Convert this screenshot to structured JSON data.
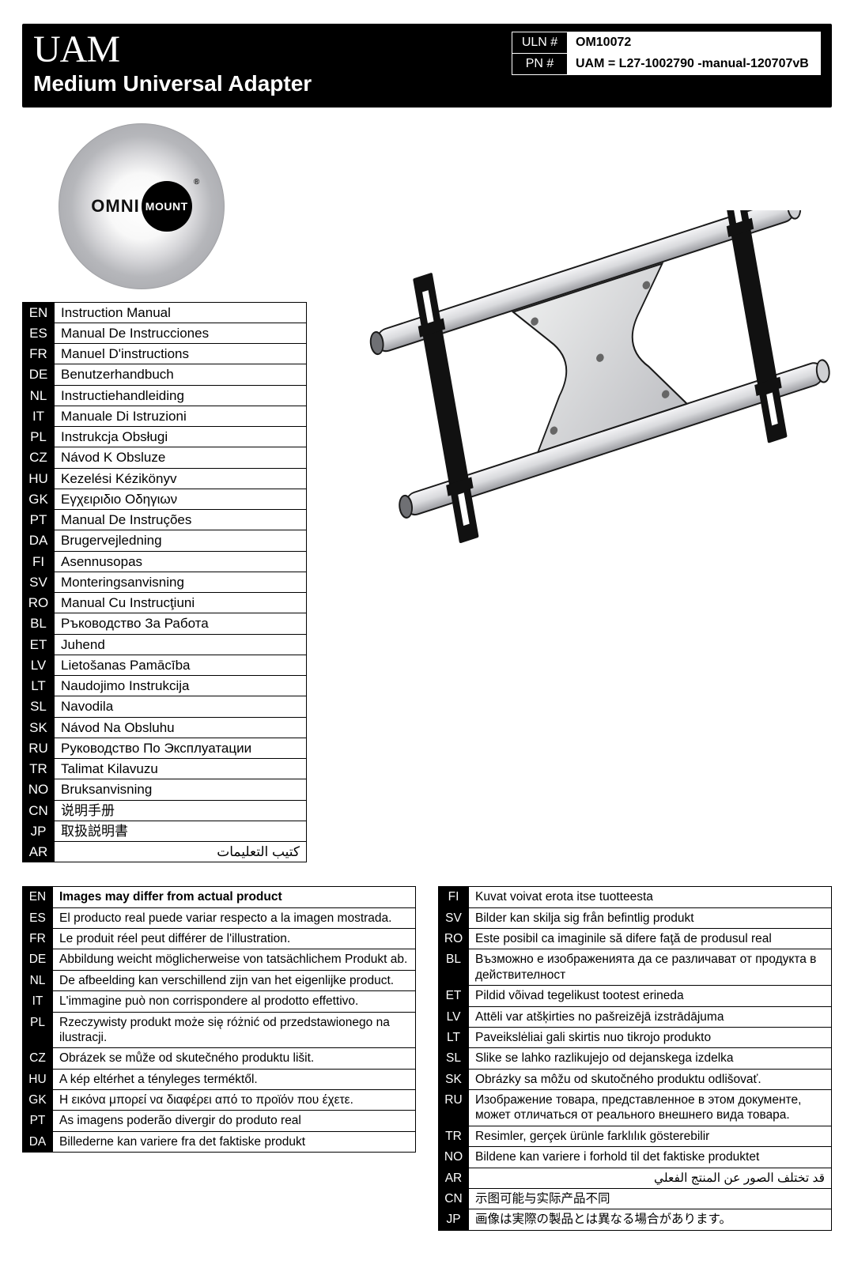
{
  "header": {
    "brand": "UAM",
    "subtitle": "Medium Universal Adapter",
    "uln_label": "ULN #",
    "uln_value": "OM10072",
    "pn_label": "PN #",
    "pn_value": "UAM = L27-1002790 -manual-120707vB"
  },
  "logo": {
    "omni": "OMNI",
    "mount": "MOUNT",
    "reg": "®"
  },
  "languages": [
    {
      "code": "EN",
      "text": "Instruction Manual"
    },
    {
      "code": "ES",
      "text": "Manual De Instrucciones"
    },
    {
      "code": "FR",
      "text": "Manuel D'instructions"
    },
    {
      "code": "DE",
      "text": "Benutzerhandbuch"
    },
    {
      "code": "NL",
      "text": "Instructiehandleiding"
    },
    {
      "code": "IT",
      "text": "Manuale Di Istruzioni"
    },
    {
      "code": "PL",
      "text": "Instrukcja Obsługi"
    },
    {
      "code": "CZ",
      "text": "Návod K Obsluze"
    },
    {
      "code": "HU",
      "text": "Kezelési Kézikönyv"
    },
    {
      "code": "GK",
      "text": "Εγχειριδιο Οδηγιων"
    },
    {
      "code": "PT",
      "text": "Manual De Instruções"
    },
    {
      "code": "DA",
      "text": "Brugervejledning"
    },
    {
      "code": "FI",
      "text": "Asennusopas"
    },
    {
      "code": "SV",
      "text": "Monteringsanvisning"
    },
    {
      "code": "RO",
      "text": "Manual Cu Instrucţiuni"
    },
    {
      "code": "BL",
      "text": "Ръководство За Работа"
    },
    {
      "code": "ET",
      "text": "Juhend"
    },
    {
      "code": "LV",
      "text": "Lietošanas Pamācība"
    },
    {
      "code": "LT",
      "text": "Naudojimo Instrukcija"
    },
    {
      "code": "SL",
      "text": "Navodila"
    },
    {
      "code": "SK",
      "text": "Návod Na Obsluhu"
    },
    {
      "code": "RU",
      "text": "Руководство По Эксплуатации"
    },
    {
      "code": "TR",
      "text": "Talimat Kilavuzu"
    },
    {
      "code": "NO",
      "text": "Bruksanvisning"
    },
    {
      "code": "CN",
      "text": "说明手册"
    },
    {
      "code": "JP",
      "text": "取扱説明書"
    },
    {
      "code": "AR",
      "text": "كتيب التعليمات",
      "rtl": true
    }
  ],
  "disclaimers_left": [
    {
      "code": "EN",
      "text": "Images may differ from actual product",
      "bold": true
    },
    {
      "code": "ES",
      "text": "El producto real puede variar respecto a la imagen mostrada."
    },
    {
      "code": "FR",
      "text": "Le produit réel peut différer de l'illustration."
    },
    {
      "code": "DE",
      "text": "Abbildung weicht möglicherweise von tatsächlichem Produkt ab."
    },
    {
      "code": "NL",
      "text": "De afbeelding kan verschillend zijn van het eigenlijke product."
    },
    {
      "code": "IT",
      "text": "L'immagine può non corrispondere al prodotto effettivo."
    },
    {
      "code": "PL",
      "text": "Rzeczywisty produkt może się różnić od przedstawionego na ilustracji."
    },
    {
      "code": "CZ",
      "text": "Obrázek se může od skutečného produktu lišit."
    },
    {
      "code": "HU",
      "text": "A kép eltérhet a tényleges terméktől."
    },
    {
      "code": "GK",
      "text": "Η εικόνα μπορεί να διαφέρει από το προϊόν που έχετε."
    },
    {
      "code": "PT",
      "text": "As imagens poderão divergir do produto real"
    },
    {
      "code": "DA",
      "text": "Billederne kan variere fra det faktiske produkt"
    }
  ],
  "disclaimers_right": [
    {
      "code": "FI",
      "text": "Kuvat voivat erota itse tuotteesta"
    },
    {
      "code": "SV",
      "text": "Bilder kan skilja sig från befintlig produkt"
    },
    {
      "code": "RO",
      "text": "Este posibil ca imaginile să difere faţă de produsul real"
    },
    {
      "code": "BL",
      "text": "Възможно е изображенията да се различават от продукта в действителност"
    },
    {
      "code": "ET",
      "text": "Pildid võivad tegelikust tootest erineda"
    },
    {
      "code": "LV",
      "text": "Attēli var atšķirties no pašreizējā izstrādājuma"
    },
    {
      "code": "LT",
      "text": "Paveikslėliai gali skirtis nuo tikrojo produkto"
    },
    {
      "code": "SL",
      "text": "Slike se lahko razlikujejo od dejanskega izdelka"
    },
    {
      "code": "SK",
      "text": "Obrázky sa môžu od skutočného produktu odlišovať."
    },
    {
      "code": "RU",
      "text": "Изображение товара, представленное в этом документе, может отличаться от реального внешнего вида товара."
    },
    {
      "code": "TR",
      "text": "Resimler, gerçek ürünle farklılık gösterebilir"
    },
    {
      "code": "NO",
      "text": "Bildene kan variere i forhold til det faktiske produktet"
    },
    {
      "code": "AR",
      "text": "قد تختلف الصور عن المنتج الفعلي",
      "rtl": true
    },
    {
      "code": "CN",
      "text": "示图可能与实际产品不同"
    },
    {
      "code": "JP",
      "text": "画像は実際の製品とは異なる場合があります。"
    }
  ],
  "svg": {
    "steel_light": "#e8e8ea",
    "steel_mid": "#c9cacd",
    "steel_dark": "#8e8f93",
    "outline": "#1a1a1a"
  }
}
